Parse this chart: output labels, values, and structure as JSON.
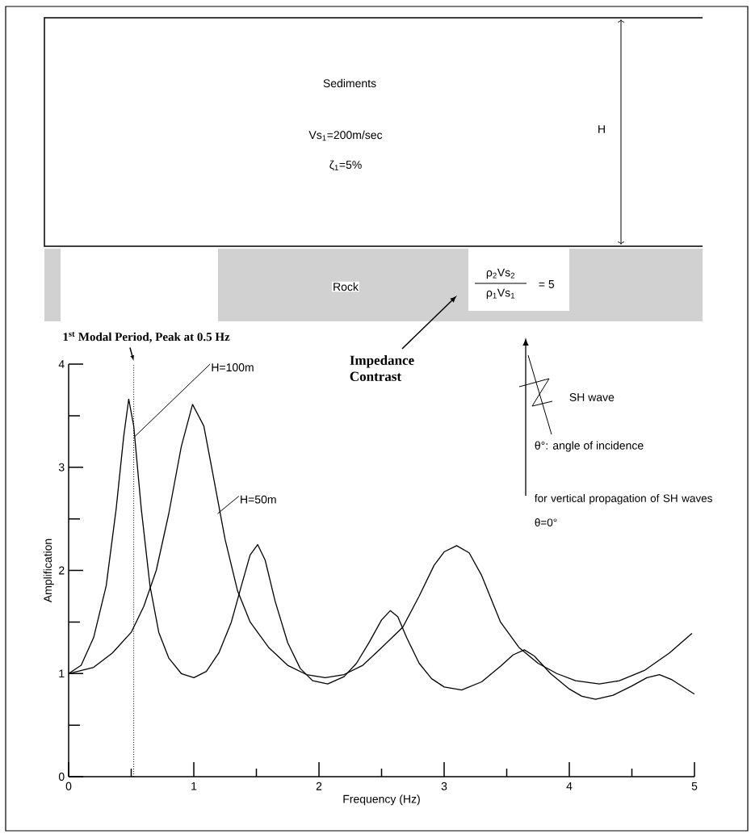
{
  "chart_data": {
    "type": "line",
    "xlabel": "Frequency (Hz)",
    "ylabel": "Amplification",
    "xlim": [
      0,
      5
    ],
    "ylim": [
      0,
      4
    ],
    "xticks": [
      0,
      {
        "value": 0.5,
        "label": null
      },
      1,
      {
        "value": 1.5,
        "label": null
      },
      2,
      {
        "value": 2.5,
        "label": null
      },
      3,
      {
        "value": 3.5,
        "label": null
      },
      4,
      {
        "value": 4.5,
        "label": null
      },
      5
    ],
    "yticks": [
      0,
      {
        "value": 0.5,
        "label": null
      },
      1,
      {
        "value": 1.5,
        "label": null
      },
      2,
      {
        "value": 2.5,
        "label": null
      },
      3,
      {
        "value": 3.5,
        "label": null
      },
      4
    ],
    "series": [
      {
        "name": "H=100m",
        "color": "#000000",
        "x": [
          0,
          0.1,
          0.2,
          0.3,
          0.38,
          0.44,
          0.48,
          0.52,
          0.58,
          0.65,
          0.72,
          0.8,
          0.9,
          1.0,
          1.1,
          1.2,
          1.3,
          1.38,
          1.45,
          1.51,
          1.57,
          1.65,
          1.75,
          1.85,
          1.95,
          2.07,
          2.2,
          2.3,
          2.4,
          2.5,
          2.57,
          2.63,
          2.7,
          2.8,
          2.9,
          3.0,
          3.14,
          3.3,
          3.45,
          3.55,
          3.64,
          3.72,
          3.85,
          4.0,
          4.1,
          4.21,
          4.35,
          4.5,
          4.62,
          4.72,
          4.82,
          5.0
        ],
        "values": [
          1.0,
          1.08,
          1.35,
          1.85,
          2.6,
          3.3,
          3.66,
          3.4,
          2.6,
          1.85,
          1.4,
          1.15,
          1.0,
          0.96,
          1.02,
          1.2,
          1.5,
          1.85,
          2.15,
          2.25,
          2.1,
          1.7,
          1.3,
          1.05,
          0.93,
          0.9,
          0.97,
          1.1,
          1.3,
          1.52,
          1.61,
          1.55,
          1.35,
          1.1,
          0.95,
          0.87,
          0.84,
          0.92,
          1.07,
          1.18,
          1.23,
          1.17,
          1.0,
          0.85,
          0.78,
          0.75,
          0.79,
          0.88,
          0.96,
          0.99,
          0.94,
          0.8
        ]
      },
      {
        "name": "H=50m",
        "color": "#000000",
        "x": [
          0,
          0.2,
          0.35,
          0.5,
          0.6,
          0.7,
          0.8,
          0.9,
          0.99,
          1.08,
          1.15,
          1.25,
          1.35,
          1.45,
          1.6,
          1.75,
          1.9,
          2.05,
          2.2,
          2.35,
          2.5,
          2.67,
          2.8,
          2.92,
          3.0,
          3.1,
          3.2,
          3.3,
          3.45,
          3.6,
          3.75,
          3.9,
          4.05,
          4.24,
          4.4,
          4.6,
          4.8,
          4.98
        ],
        "values": [
          1.0,
          1.06,
          1.2,
          1.4,
          1.65,
          2.0,
          2.55,
          3.2,
          3.61,
          3.4,
          2.95,
          2.3,
          1.8,
          1.5,
          1.25,
          1.08,
          0.99,
          0.96,
          0.99,
          1.08,
          1.25,
          1.45,
          1.75,
          2.05,
          2.18,
          2.24,
          2.17,
          1.95,
          1.5,
          1.25,
          1.1,
          1.0,
          0.93,
          0.9,
          0.93,
          1.03,
          1.2,
          1.39
        ]
      }
    ],
    "ref_lines": [
      {
        "axis": "x",
        "value": 0.52,
        "label": "1$^{st}$ Modal Period, Peak at 0.5 Hz",
        "line_style": "dotted",
        "color": "#000000"
      }
    ],
    "annotations": [
      "Sediments",
      "Vs$_{1}$=200m/sec",
      "ζ$_{1}$=5%",
      "H",
      "Rock",
      "ρ$_{2}$Vs$_{2}$",
      "ρ$_{1}$Vs$_{1}$",
      "= 5",
      "Impedance Contrast",
      "SH wave",
      "θ°: angle of incidence",
      "for vertical propagation of SH waves θ=0°"
    ]
  }
}
